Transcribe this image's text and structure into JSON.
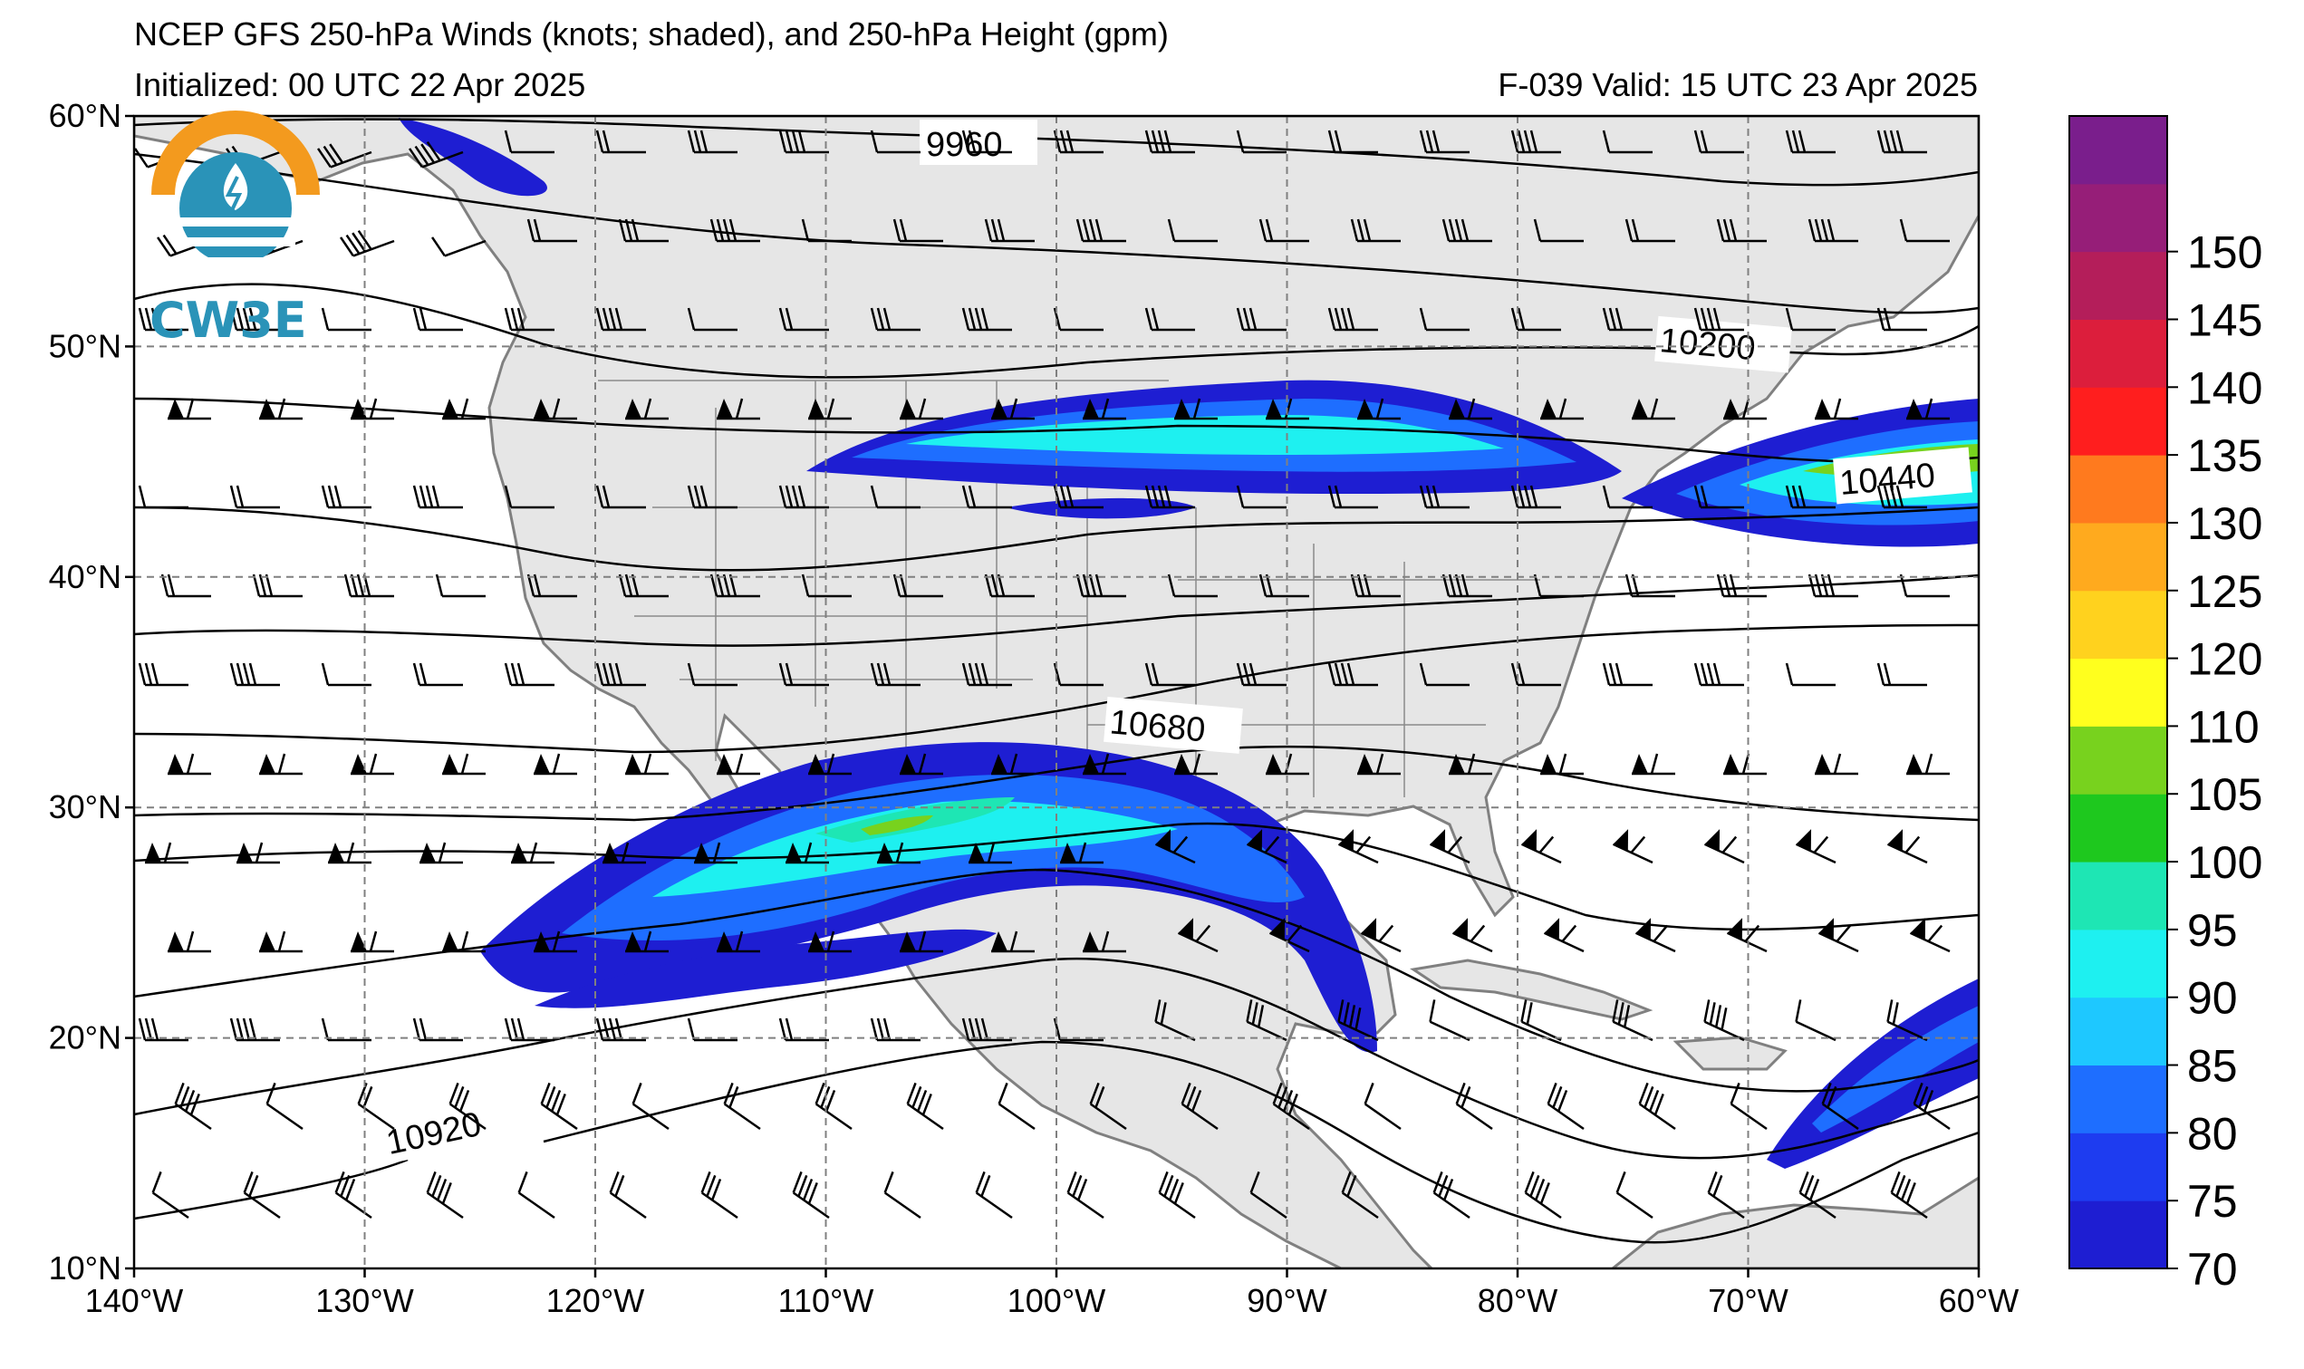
{
  "title": {
    "line1": "NCEP GFS 250-hPa Winds (knots; shaded), and 250-hPa Height (gpm)",
    "line2": "Initialized: 00 UTC 22 Apr 2025",
    "right": "F-039  Valid: 15 UTC 23 Apr 2025"
  },
  "logo": {
    "text": "CW3E",
    "icon_name": "cw3e-sun-water-icon"
  },
  "axes": {
    "lon_ticks": [
      "140°W",
      "130°W",
      "120°W",
      "110°W",
      "100°W",
      "90°W",
      "80°W",
      "70°W",
      "60°W"
    ],
    "lat_ticks": [
      "10°N",
      "20°N",
      "30°N",
      "40°N",
      "50°N",
      "60°N"
    ],
    "lon_range": [
      -140,
      -60
    ],
    "lat_range": [
      10,
      60
    ],
    "grid": "dashed"
  },
  "contour_labels": [
    "9960",
    "10200",
    "10440",
    "10680",
    "10920"
  ],
  "colorbar": {
    "ticks": [
      "70",
      "75",
      "80",
      "85",
      "90",
      "95",
      "100",
      "105",
      "110",
      "120",
      "125",
      "130",
      "135",
      "140",
      "145",
      "150"
    ],
    "colors": [
      "#1e1ed2",
      "#1e3cf0",
      "#1e6eff",
      "#1ec8ff",
      "#1ef0f0",
      "#1ee6b4",
      "#1ec81e",
      "#78d21e",
      "#ffff1e",
      "#ffd21e",
      "#ffaa1e",
      "#ff7a1e",
      "#ff1e1e",
      "#dc1e3c",
      "#b41e5a",
      "#961e78",
      "#7a1e8c"
    ]
  },
  "colors": {
    "land": "#e6e6e6",
    "coast": "#808080",
    "ocean": "#ffffff"
  }
}
